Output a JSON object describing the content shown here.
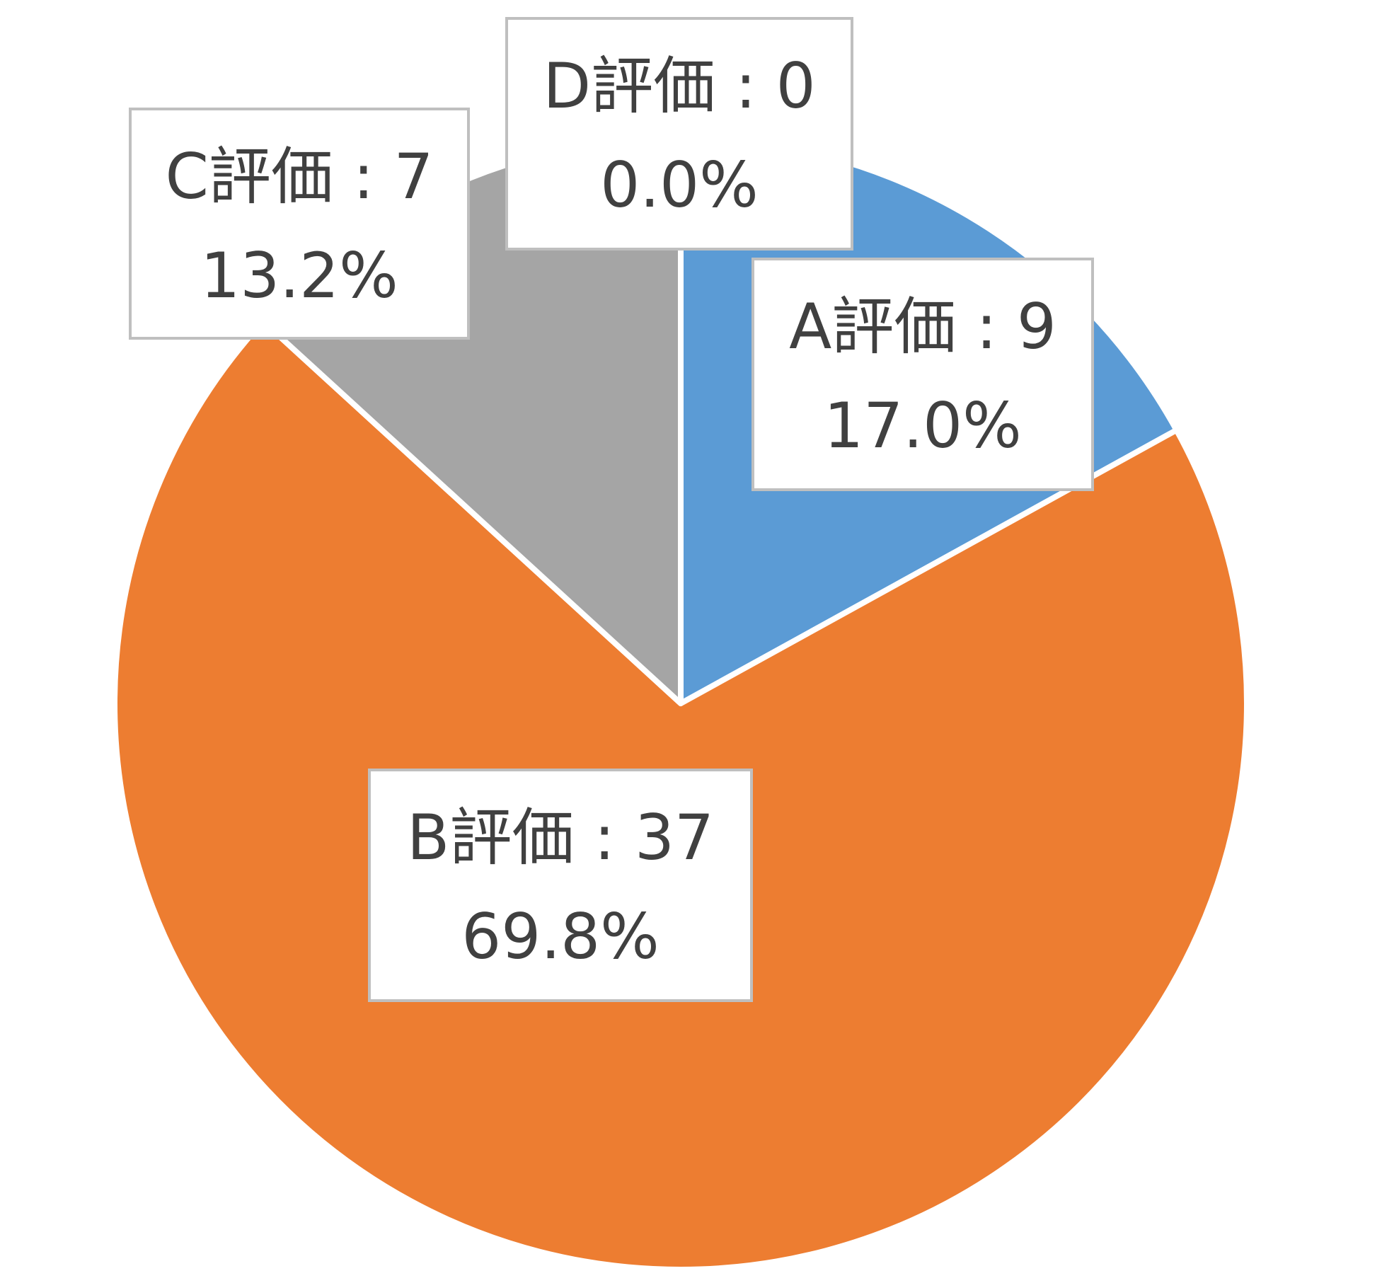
{
  "chart_data": {
    "type": "pie",
    "title": "",
    "categories": [
      "A評価",
      "B評価",
      "C評価",
      "D評価"
    ],
    "values": [
      9,
      37,
      7,
      0
    ],
    "percent_labels": [
      "17.0%",
      "69.8%",
      "13.2%",
      "0.0%"
    ],
    "colors": [
      "#5B9BD5",
      "#ED7D31",
      "#A5A5A5",
      "#FFC000"
    ],
    "legend": "none",
    "data_label_format": "category:value / percent"
  }
}
